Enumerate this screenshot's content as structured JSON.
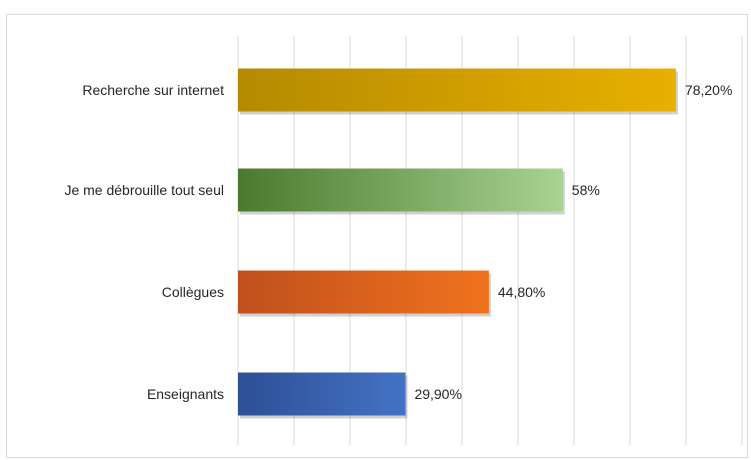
{
  "chart_data": {
    "type": "bar",
    "orientation": "horizontal",
    "categories": [
      "Recherche sur internet",
      "Je me débrouille tout seul",
      "Collègues",
      "Enseignants"
    ],
    "values": [
      78.2,
      58,
      44.8,
      29.9
    ],
    "value_labels": [
      "78,20%",
      "58%",
      "44,80%",
      "29,90%"
    ],
    "title": "",
    "xlabel": "",
    "ylabel": "",
    "xlim": [
      0,
      90
    ],
    "grid": true,
    "legend": "none",
    "colors": [
      {
        "from": "#b58a00",
        "to": "#e8b000"
      },
      {
        "from": "#4a7a2f",
        "to": "#a8d390"
      },
      {
        "from": "#c0501c",
        "to": "#f0721e"
      },
      {
        "from": "#2d5096",
        "to": "#4472c4"
      }
    ]
  }
}
